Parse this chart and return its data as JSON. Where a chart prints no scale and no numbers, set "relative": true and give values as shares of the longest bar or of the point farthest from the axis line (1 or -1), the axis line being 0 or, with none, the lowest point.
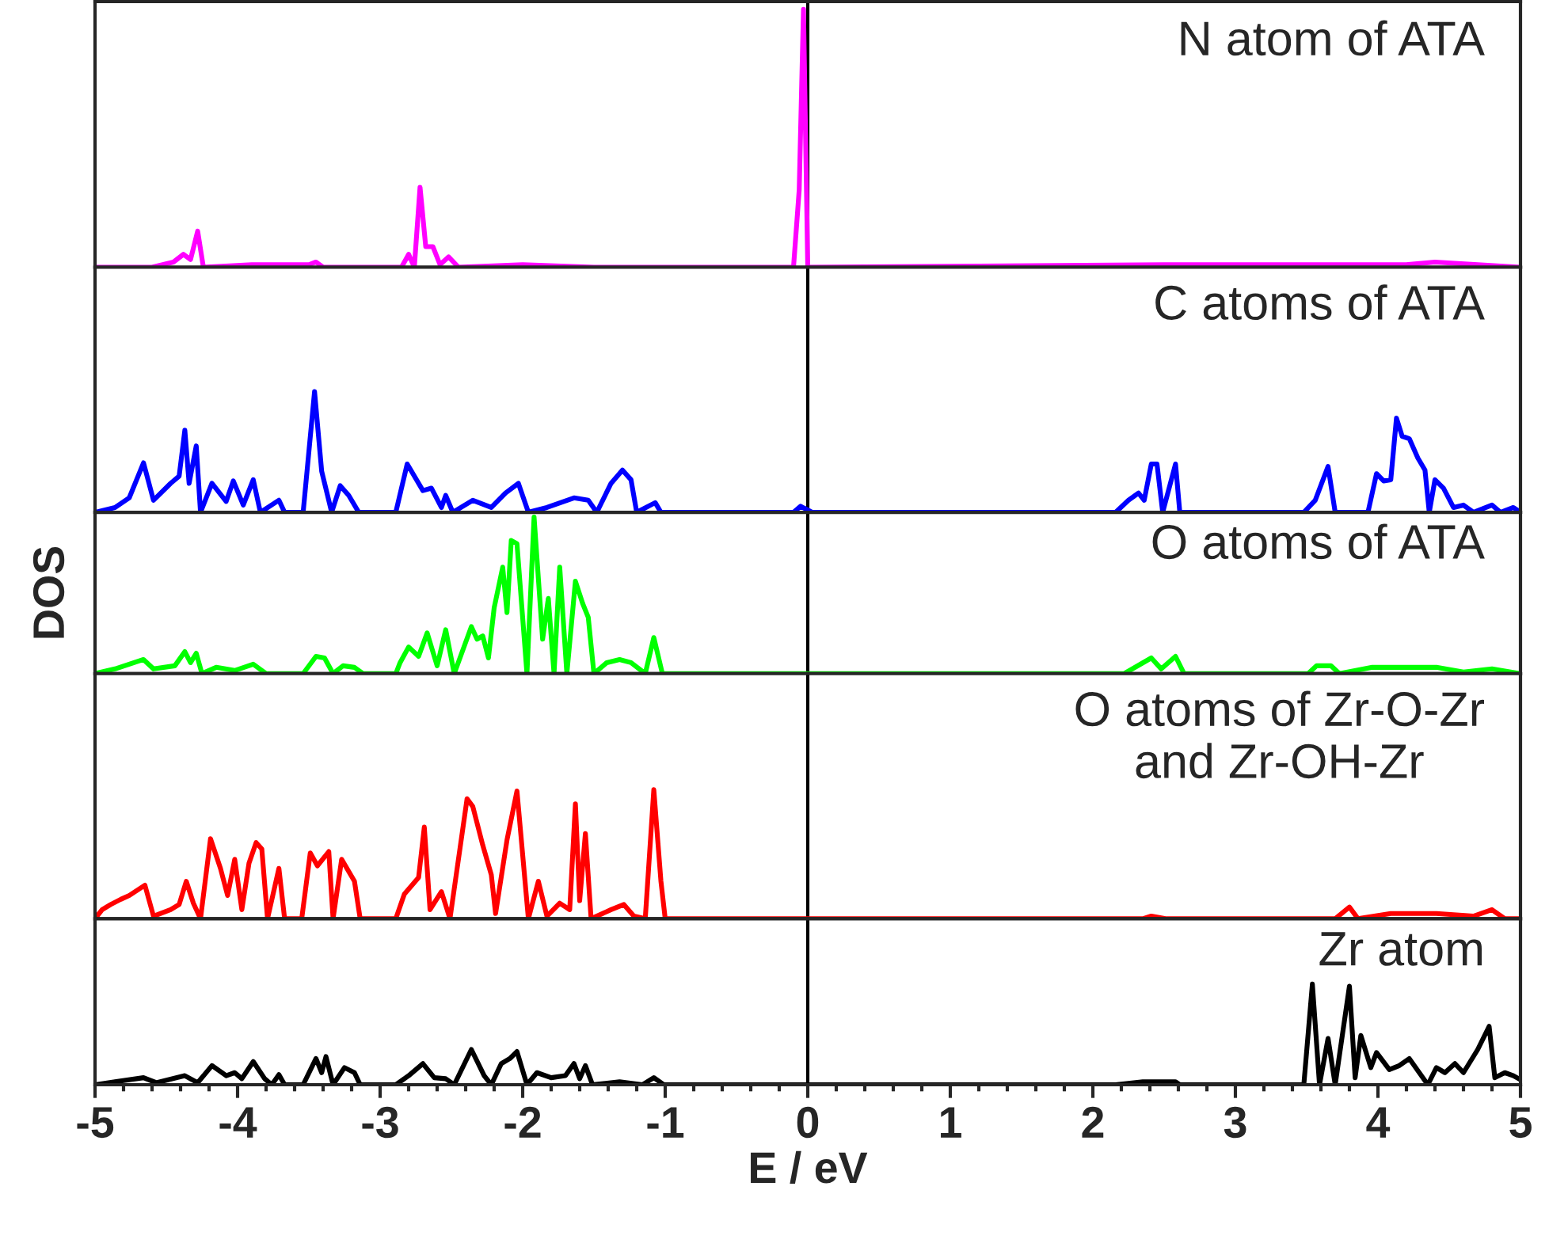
{
  "chart_data": [
    {
      "type": "line",
      "title": "N atom of ATA",
      "relative": true,
      "xlim": [
        -5,
        5
      ],
      "xticks": [
        -5,
        -4,
        -3,
        -2,
        -1,
        0,
        1,
        2,
        3,
        4,
        5
      ],
      "tick_labels": false,
      "ref_lines": [
        {
          "axis": "x",
          "value": 0,
          "color": "#000000"
        }
      ],
      "x": [
        -5,
        -4.6,
        -4.45,
        -4.38,
        -4.33,
        -4.28,
        -4.24,
        -3.9,
        -3.5,
        -3.45,
        -3.4,
        -2.85,
        -2.8,
        -2.76,
        -2.72,
        -2.68,
        -2.63,
        -2.58,
        -2.52,
        -2.45,
        -2.0,
        -1.5,
        -0.1,
        -0.06,
        -0.03,
        0.0,
        2.5,
        4.2,
        4.4,
        4.7,
        5
      ],
      "series": [
        {
          "color": "#ff00ff",
          "values": [
            0,
            0,
            0.02,
            0.05,
            0.03,
            0.14,
            0,
            0.01,
            0.01,
            0.02,
            0,
            0,
            0.05,
            0,
            0.31,
            0.08,
            0.08,
            0.01,
            0.04,
            0,
            0.01,
            0,
            0,
            0.3,
            1,
            0,
            0.01,
            0.01,
            0.02,
            0.01,
            0
          ]
        }
      ]
    },
    {
      "type": "line",
      "title": "C atoms of ATA",
      "relative": true,
      "xlim": [
        -5,
        5
      ],
      "xticks": [
        -5,
        -4,
        -3,
        -2,
        -1,
        0,
        1,
        2,
        3,
        4,
        5
      ],
      "tick_labels": false,
      "ref_lines": [
        {
          "axis": "x",
          "value": 0,
          "color": "#000000"
        }
      ],
      "x": [
        -5,
        -4.86,
        -4.76,
        -4.66,
        -4.59,
        -4.47,
        -4.41,
        -4.37,
        -4.34,
        -4.29,
        -4.26,
        -4.18,
        -4.08,
        -4.03,
        -3.96,
        -3.89,
        -3.84,
        -3.71,
        -3.67,
        -3.54,
        -3.46,
        -3.41,
        -3.34,
        -3.28,
        -3.22,
        -3.15,
        -2.89,
        -2.81,
        -2.7,
        -2.64,
        -2.57,
        -2.54,
        -2.49,
        -2.35,
        -2.22,
        -2.12,
        -2.03,
        -1.96,
        -1.83,
        -1.64,
        -1.54,
        -1.48,
        -1.38,
        -1.3,
        -1.24,
        -1.2,
        -1.07,
        -1.03,
        -0.1,
        -0.05,
        0.03,
        2.16,
        2.25,
        2.32,
        2.36,
        2.41,
        2.45,
        2.49,
        2.58,
        2.61,
        3.48,
        3.56,
        3.65,
        3.7,
        3.93,
        3.99,
        4.04,
        4.09,
        4.13,
        4.17,
        4.22,
        4.28,
        4.33,
        4.36,
        4.4,
        4.46,
        4.53,
        4.6,
        4.67,
        4.8,
        4.86,
        4.95,
        5
      ],
      "series": [
        {
          "color": "#0000ff",
          "values": [
            0,
            0.04,
            0.12,
            0.41,
            0.1,
            0.24,
            0.3,
            0.68,
            0.24,
            0.55,
            0,
            0.24,
            0.09,
            0.26,
            0.06,
            0.27,
            0,
            0.1,
            0,
            0,
            1,
            0.34,
            0,
            0.22,
            0.14,
            0,
            0,
            0.4,
            0.18,
            0.2,
            0.04,
            0.14,
            0,
            0.1,
            0.04,
            0.16,
            0.24,
            0,
            0.04,
            0.12,
            0.1,
            0,
            0.24,
            0.35,
            0.27,
            0,
            0.08,
            0,
            0,
            0.05,
            0,
            0,
            0.1,
            0.16,
            0.1,
            0.4,
            0.4,
            0,
            0.4,
            0,
            0,
            0.1,
            0.38,
            0,
            0,
            0.32,
            0.26,
            0.27,
            0.78,
            0.63,
            0.61,
            0.45,
            0.35,
            0,
            0.27,
            0.2,
            0.04,
            0.06,
            0,
            0.06,
            0,
            0.04,
            0
          ]
        }
      ]
    },
    {
      "type": "line",
      "title": "O atoms of ATA",
      "ylabel": "DOS",
      "relative": true,
      "xlim": [
        -5,
        5
      ],
      "xticks": [
        -5,
        -4,
        -3,
        -2,
        -1,
        0,
        1,
        2,
        3,
        4,
        5
      ],
      "tick_labels": false,
      "ref_lines": [
        {
          "axis": "x",
          "value": 0,
          "color": "#000000"
        }
      ],
      "x": [
        -5,
        -4.86,
        -4.66,
        -4.59,
        -4.44,
        -4.37,
        -4.33,
        -4.29,
        -4.25,
        -4.15,
        -4.02,
        -3.89,
        -3.8,
        -3.54,
        -3.45,
        -3.39,
        -3.33,
        -3.26,
        -3.18,
        -3.12,
        -2.89,
        -2.86,
        -2.8,
        -2.73,
        -2.67,
        -2.6,
        -2.54,
        -2.48,
        -2.36,
        -2.32,
        -2.28,
        -2.24,
        -2.2,
        -2.14,
        -2.11,
        -2.08,
        -2.04,
        -1.97,
        -1.92,
        -1.86,
        -1.82,
        -1.78,
        -1.74,
        -1.69,
        -1.63,
        -1.58,
        -1.54,
        -1.5,
        -1.41,
        -1.32,
        -1.24,
        -1.14,
        -1.08,
        -1.02,
        2.22,
        2.41,
        2.48,
        2.58,
        2.64,
        3.51,
        3.57,
        3.67,
        3.73,
        3.96,
        4.22,
        4.41,
        4.6,
        4.8,
        5
      ],
      "series": [
        {
          "color": "#00ff00",
          "values": [
            0,
            0.03,
            0.09,
            0.03,
            0.05,
            0.14,
            0.07,
            0.13,
            0,
            0.04,
            0.02,
            0.06,
            0,
            0,
            0.11,
            0.1,
            0,
            0.05,
            0.04,
            0,
            0,
            0.07,
            0.17,
            0.11,
            0.26,
            0.05,
            0.28,
            0,
            0.3,
            0.22,
            0.24,
            0.1,
            0.42,
            0.68,
            0.39,
            0.85,
            0.83,
            0,
            1,
            0.22,
            0.48,
            0,
            0.68,
            0,
            0.59,
            0.45,
            0.36,
            0,
            0.07,
            0.09,
            0.07,
            0,
            0.23,
            0,
            0,
            0.1,
            0.03,
            0.11,
            0,
            0,
            0.05,
            0.05,
            0,
            0.04,
            0.04,
            0.04,
            0.01,
            0.03,
            0
          ]
        }
      ]
    },
    {
      "type": "line",
      "title": "O atoms of Zr-O-Zr\nand Zr-OH-Zr",
      "relative": true,
      "xlim": [
        -5,
        5
      ],
      "xticks": [
        -5,
        -4,
        -3,
        -2,
        -1,
        0,
        1,
        2,
        3,
        4,
        5
      ],
      "tick_labels": false,
      "ref_lines": [
        {
          "axis": "x",
          "value": 0,
          "color": "#000000"
        }
      ],
      "x": [
        -5,
        -4.95,
        -4.89,
        -4.82,
        -4.76,
        -4.65,
        -4.59,
        -4.47,
        -4.41,
        -4.36,
        -4.31,
        -4.26,
        -4.19,
        -4.12,
        -4.07,
        -4.02,
        -3.97,
        -3.92,
        -3.87,
        -3.83,
        -3.79,
        -3.71,
        -3.67,
        -3.55,
        -3.49,
        -3.44,
        -3.36,
        -3.33,
        -3.27,
        -3.18,
        -3.14,
        -2.89,
        -2.83,
        -2.73,
        -2.69,
        -2.65,
        -2.57,
        -2.51,
        -2.39,
        -2.35,
        -2.28,
        -2.22,
        -2.19,
        -2.11,
        -2.04,
        -1.96,
        -1.89,
        -1.83,
        -1.74,
        -1.67,
        -1.63,
        -1.6,
        -1.56,
        -1.52,
        -1.38,
        -1.29,
        -1.22,
        -1.14,
        -1.08,
        -1.03,
        -1.0,
        2.35,
        2.41,
        2.51,
        3.7,
        3.8,
        3.86,
        4.09,
        4.41,
        4.67,
        4.8,
        4.89,
        5
      ],
      "series": [
        {
          "color": "#ff0000",
          "values": [
            0,
            0.07,
            0.11,
            0.15,
            0.18,
            0.26,
            0.02,
            0.07,
            0.11,
            0.29,
            0.12,
            0,
            0.62,
            0.39,
            0.18,
            0.46,
            0.07,
            0.43,
            0.59,
            0.54,
            0,
            0.39,
            0,
            0,
            0.51,
            0.41,
            0.52,
            0,
            0.46,
            0.29,
            0,
            0,
            0.19,
            0.32,
            0.71,
            0.07,
            0.21,
            0,
            0.93,
            0.87,
            0.57,
            0.34,
            0.04,
            0.61,
            0.99,
            0,
            0.29,
            0.02,
            0.12,
            0.07,
            0.89,
            0.14,
            0.66,
            0,
            0.07,
            0.11,
            0.02,
            0,
            1,
            0.29,
            0,
            0,
            0.02,
            0,
            0,
            0.09,
            0,
            0.04,
            0.04,
            0.02,
            0.07,
            0,
            0
          ]
        }
      ]
    },
    {
      "type": "line",
      "title": "Zr atom",
      "xlabel": "E / eV",
      "relative": true,
      "xlim": [
        -5,
        5
      ],
      "xticks": [
        -5,
        -4,
        -3,
        -2,
        -1,
        0,
        1,
        2,
        3,
        4,
        5
      ],
      "tick_labels": "x",
      "ref_lines": [
        {
          "axis": "x",
          "value": 0,
          "color": "#000000"
        }
      ],
      "x": [
        -5,
        -4.86,
        -4.66,
        -4.57,
        -4.37,
        -4.28,
        -4.18,
        -4.08,
        -4.02,
        -3.97,
        -3.89,
        -3.81,
        -3.76,
        -3.71,
        -3.67,
        -3.54,
        -3.45,
        -3.41,
        -3.38,
        -3.33,
        -3.25,
        -3.18,
        -3.14,
        -2.89,
        -2.8,
        -2.7,
        -2.62,
        -2.54,
        -2.48,
        -2.36,
        -2.27,
        -2.22,
        -2.15,
        -2.09,
        -2.04,
        -1.97,
        -1.9,
        -1.8,
        -1.7,
        -1.64,
        -1.6,
        -1.56,
        -1.51,
        -1.32,
        -1.16,
        -1.08,
        -1.01,
        2.16,
        2.35,
        2.58,
        2.61,
        3.48,
        3.54,
        3.59,
        3.65,
        3.7,
        3.8,
        3.84,
        3.88,
        3.95,
        3.99,
        4.08,
        4.15,
        4.22,
        4.28,
        4.35,
        4.41,
        4.47,
        4.54,
        4.6,
        4.7,
        4.78,
        4.82,
        4.89,
        4.95,
        5
      ],
      "series": [
        {
          "color": "#000000",
          "values": [
            0,
            0.03,
            0.07,
            0.02,
            0.09,
            0.02,
            0.19,
            0.09,
            0.12,
            0.06,
            0.23,
            0.06,
            0,
            0.1,
            0,
            0,
            0.26,
            0.12,
            0.28,
            0,
            0.17,
            0.12,
            0,
            0,
            0.09,
            0.21,
            0.07,
            0.06,
            0,
            0.35,
            0.09,
            0,
            0.21,
            0.26,
            0.33,
            0,
            0.12,
            0.07,
            0.09,
            0.21,
            0.06,
            0.19,
            0,
            0.03,
            0,
            0.07,
            0,
            0,
            0.03,
            0.03,
            0,
            0,
            1,
            0,
            0.46,
            0,
            0.98,
            0.07,
            0.49,
            0.17,
            0.32,
            0.15,
            0.19,
            0.26,
            0.14,
            0,
            0.17,
            0.12,
            0.21,
            0.12,
            0.35,
            0.58,
            0.07,
            0.12,
            0.09,
            0.05
          ]
        }
      ]
    }
  ]
}
